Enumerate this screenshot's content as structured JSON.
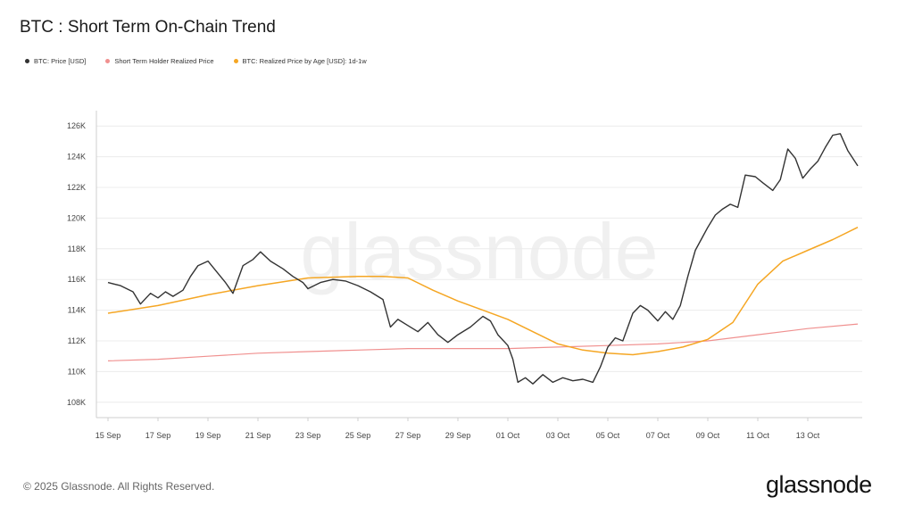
{
  "title": "BTC : Short Term On-Chain Trend",
  "footer": "© 2025 Glassnode. All Rights Reserved.",
  "logo_text": "glassnode",
  "watermark": "glassnode",
  "legend": [
    {
      "label": "BTC: Price [USD]",
      "color": "#333333"
    },
    {
      "label": "Short Term Holder Realized Price",
      "color": "#f0908f"
    },
    {
      "label": "BTC: Realized Price by Age [USD]: 1d-1w",
      "color": "#f5a623"
    }
  ],
  "chart_data": {
    "type": "line",
    "title": "BTC : Short Term On-Chain Trend",
    "x_ticks": [
      "15 Sep",
      "17 Sep",
      "19 Sep",
      "21 Sep",
      "23 Sep",
      "25 Sep",
      "27 Sep",
      "29 Sep",
      "01 Oct",
      "03 Oct",
      "05 Oct",
      "07 Oct",
      "09 Oct",
      "11 Oct",
      "13 Oct"
    ],
    "y_ticks": [
      "108K",
      "110K",
      "112K",
      "114K",
      "116K",
      "118K",
      "120K",
      "122K",
      "124K",
      "126K"
    ],
    "ylim": [
      107000,
      127000
    ],
    "x_range_days": [
      0,
      30
    ],
    "grid": true,
    "legend_position": "top-left",
    "series": [
      {
        "name": "BTC: Price [USD]",
        "color": "#333333",
        "points": [
          [
            0,
            115800
          ],
          [
            0.5,
            115600
          ],
          [
            1,
            115200
          ],
          [
            1.3,
            114400
          ],
          [
            1.7,
            115100
          ],
          [
            2,
            114800
          ],
          [
            2.3,
            115200
          ],
          [
            2.6,
            114900
          ],
          [
            3,
            115300
          ],
          [
            3.3,
            116200
          ],
          [
            3.6,
            116900
          ],
          [
            4,
            117200
          ],
          [
            4.4,
            116400
          ],
          [
            4.7,
            115800
          ],
          [
            5,
            115100
          ],
          [
            5.4,
            116900
          ],
          [
            5.8,
            117300
          ],
          [
            6.1,
            117800
          ],
          [
            6.5,
            117200
          ],
          [
            7,
            116700
          ],
          [
            7.4,
            116200
          ],
          [
            7.8,
            115800
          ],
          [
            8,
            115400
          ],
          [
            8.5,
            115800
          ],
          [
            9,
            116000
          ],
          [
            9.5,
            115900
          ],
          [
            10,
            115600
          ],
          [
            10.5,
            115200
          ],
          [
            11,
            114700
          ],
          [
            11.3,
            112900
          ],
          [
            11.6,
            113400
          ],
          [
            12,
            113000
          ],
          [
            12.4,
            112600
          ],
          [
            12.8,
            113200
          ],
          [
            13.2,
            112400
          ],
          [
            13.6,
            111900
          ],
          [
            14,
            112400
          ],
          [
            14.5,
            112900
          ],
          [
            15,
            113600
          ],
          [
            15.3,
            113300
          ],
          [
            15.6,
            112400
          ],
          [
            16,
            111700
          ],
          [
            16.2,
            110800
          ],
          [
            16.4,
            109300
          ],
          [
            16.7,
            109600
          ],
          [
            17,
            109200
          ],
          [
            17.4,
            109800
          ],
          [
            17.8,
            109300
          ],
          [
            18.2,
            109600
          ],
          [
            18.6,
            109400
          ],
          [
            19,
            109500
          ],
          [
            19.4,
            109300
          ],
          [
            19.7,
            110300
          ],
          [
            20,
            111600
          ],
          [
            20.3,
            112200
          ],
          [
            20.6,
            112000
          ],
          [
            21,
            113800
          ],
          [
            21.3,
            114300
          ],
          [
            21.6,
            114000
          ],
          [
            22,
            113300
          ],
          [
            22.3,
            113900
          ],
          [
            22.6,
            113400
          ],
          [
            22.9,
            114300
          ],
          [
            23.2,
            116200
          ],
          [
            23.5,
            117900
          ],
          [
            23.8,
            118800
          ],
          [
            24,
            119400
          ],
          [
            24.3,
            120200
          ],
          [
            24.6,
            120600
          ],
          [
            24.9,
            120900
          ],
          [
            25.2,
            120700
          ],
          [
            25.5,
            122800
          ],
          [
            25.9,
            122700
          ],
          [
            26.2,
            122300
          ],
          [
            26.6,
            121800
          ],
          [
            26.9,
            122500
          ],
          [
            27.2,
            124500
          ],
          [
            27.5,
            123900
          ],
          [
            27.8,
            122600
          ],
          [
            28.1,
            123200
          ],
          [
            28.4,
            123700
          ],
          [
            28.7,
            124600
          ],
          [
            29,
            125400
          ],
          [
            29.3,
            125500
          ],
          [
            29.6,
            124400
          ],
          [
            30,
            123400
          ]
        ]
      },
      {
        "name": "Short Term Holder Realized Price",
        "color": "#f0908f",
        "points": [
          [
            0,
            110700
          ],
          [
            2,
            110800
          ],
          [
            4,
            111000
          ],
          [
            6,
            111200
          ],
          [
            8,
            111300
          ],
          [
            10,
            111400
          ],
          [
            12,
            111500
          ],
          [
            14,
            111500
          ],
          [
            16,
            111500
          ],
          [
            18,
            111600
          ],
          [
            20,
            111700
          ],
          [
            22,
            111800
          ],
          [
            24,
            112000
          ],
          [
            26,
            112400
          ],
          [
            28,
            112800
          ],
          [
            30,
            113100
          ]
        ]
      },
      {
        "name": "BTC: Realized Price by Age [USD]: 1d-1w",
        "color": "#f5a623",
        "points": [
          [
            0,
            113800
          ],
          [
            2,
            114300
          ],
          [
            4,
            115000
          ],
          [
            6,
            115600
          ],
          [
            8,
            116100
          ],
          [
            10,
            116200
          ],
          [
            11,
            116200
          ],
          [
            12,
            116100
          ],
          [
            13,
            115300
          ],
          [
            14,
            114600
          ],
          [
            15,
            114000
          ],
          [
            16,
            113400
          ],
          [
            17,
            112600
          ],
          [
            18,
            111800
          ],
          [
            19,
            111400
          ],
          [
            20,
            111200
          ],
          [
            21,
            111100
          ],
          [
            22,
            111300
          ],
          [
            23,
            111600
          ],
          [
            24,
            112100
          ],
          [
            25,
            113200
          ],
          [
            26,
            115700
          ],
          [
            27,
            117200
          ],
          [
            28,
            117900
          ],
          [
            29,
            118600
          ],
          [
            30,
            119400
          ]
        ]
      }
    ]
  }
}
